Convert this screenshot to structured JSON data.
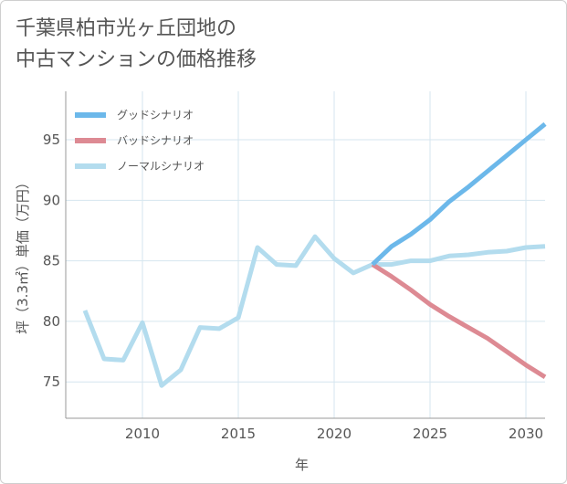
{
  "title_line1": "千葉県柏市光ヶ丘団地の",
  "title_line2": "中古マンションの価格推移",
  "chart_data": {
    "type": "line",
    "title": "千葉県柏市光ヶ丘団地の中古マンションの価格推移",
    "xlabel": "年",
    "ylabel": "坪（3.3㎡）単価（万円）",
    "xlim": [
      2006,
      2031
    ],
    "ylim": [
      72,
      99
    ],
    "x_ticks": [
      2010,
      2015,
      2020,
      2025,
      2030
    ],
    "y_ticks": [
      75,
      80,
      85,
      90,
      95
    ],
    "grid": true,
    "legend_position": "top-left",
    "series": [
      {
        "name": "グッドシナリオ",
        "color": "#6cb8ea",
        "x": [
          2022,
          2023,
          2024,
          2025,
          2026,
          2027,
          2028,
          2029,
          2030,
          2031
        ],
        "values": [
          84.7,
          86.2,
          87.2,
          88.4,
          89.9,
          91.1,
          92.4,
          93.7,
          95.0,
          96.3
        ]
      },
      {
        "name": "バッドシナリオ",
        "color": "#dd8a93",
        "x": [
          2022,
          2023,
          2024,
          2025,
          2026,
          2027,
          2028,
          2029,
          2030,
          2031
        ],
        "values": [
          84.7,
          83.7,
          82.6,
          81.4,
          80.4,
          79.5,
          78.6,
          77.5,
          76.4,
          75.4
        ]
      },
      {
        "name": "ノーマルシナリオ",
        "color": "#b3dcee",
        "x": [
          2007,
          2008,
          2009,
          2010,
          2011,
          2012,
          2013,
          2014,
          2015,
          2016,
          2017,
          2018,
          2019,
          2020,
          2021,
          2022,
          2023,
          2024,
          2025,
          2026,
          2027,
          2028,
          2029,
          2030,
          2031
        ],
        "values": [
          80.9,
          76.9,
          76.8,
          79.9,
          74.7,
          76.0,
          79.5,
          79.4,
          80.3,
          86.1,
          84.7,
          84.6,
          87.0,
          85.2,
          84.0,
          84.7,
          84.7,
          85.0,
          85.0,
          85.4,
          85.5,
          85.7,
          85.8,
          86.1,
          86.2
        ]
      }
    ]
  }
}
